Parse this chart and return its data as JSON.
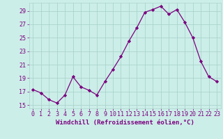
{
  "x": [
    0,
    1,
    2,
    3,
    4,
    5,
    6,
    7,
    8,
    9,
    10,
    11,
    12,
    13,
    14,
    15,
    16,
    17,
    18,
    19,
    20,
    21,
    22,
    23
  ],
  "y": [
    17.3,
    16.8,
    15.8,
    15.3,
    16.5,
    19.2,
    17.7,
    17.2,
    16.5,
    18.5,
    20.3,
    22.2,
    24.5,
    26.5,
    28.8,
    29.2,
    29.7,
    28.5,
    29.2,
    27.3,
    25.0,
    21.5,
    19.2,
    18.5
  ],
  "line_color": "#7b0080",
  "marker": "D",
  "marker_size": 2.2,
  "line_width": 0.9,
  "bg_color": "#cceee8",
  "grid_color": "#aad4cc",
  "xlabel": "Windchill (Refroidissement éolien,°C)",
  "xlabel_color": "#7b0080",
  "xlabel_fontsize": 6.5,
  "tick_color": "#7b0080",
  "tick_fontsize": 6,
  "xlim": [
    -0.5,
    23.5
  ],
  "ylim": [
    14.5,
    30.2
  ],
  "yticks": [
    15,
    17,
    19,
    21,
    23,
    25,
    27,
    29
  ],
  "xticks": [
    0,
    1,
    2,
    3,
    4,
    5,
    6,
    7,
    8,
    9,
    10,
    11,
    12,
    13,
    14,
    15,
    16,
    17,
    18,
    19,
    20,
    21,
    22,
    23
  ]
}
